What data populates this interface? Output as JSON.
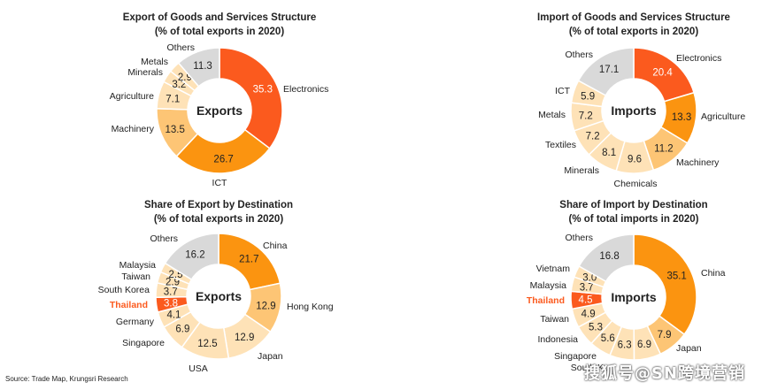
{
  "footer": {
    "source": "Source: Trade Map, Krungsri Research"
  },
  "watermark": {
    "text": "搜狐号@SN跨境营销"
  },
  "chart_data": [
    {
      "type": "pie",
      "title": "Export of Goods and Services Structure",
      "subtitle": "(% of total exports in 2020)",
      "center_label": "Exports",
      "slices": [
        {
          "label": "Electronics",
          "value": 35.3,
          "color": "#fb5a1e"
        },
        {
          "label": "ICT",
          "value": 26.7,
          "color": "#fb9410"
        },
        {
          "label": "Machinery",
          "value": 13.5,
          "color": "#fdc575"
        },
        {
          "label": "Agriculture",
          "value": 7.1,
          "color": "#fee2b7"
        },
        {
          "label": "Minerals",
          "value": 3.2,
          "color": "#fee2b7"
        },
        {
          "label": "Metals",
          "value": 2.9,
          "color": "#fee2b7"
        },
        {
          "label": "Others",
          "value": 11.3,
          "color": "#d9d9d9"
        }
      ]
    },
    {
      "type": "pie",
      "title": "Import of Goods and Services Structure",
      "subtitle": "(% of total exports in 2020)",
      "center_label": "Imports",
      "slices": [
        {
          "label": "Electronics",
          "value": 20.4,
          "color": "#fb5a1e"
        },
        {
          "label": "Agriculture",
          "value": 13.3,
          "color": "#fb9410"
        },
        {
          "label": "Machinery",
          "value": 11.2,
          "color": "#fdc575"
        },
        {
          "label": "Chemicals",
          "value": 9.6,
          "color": "#fee2b7"
        },
        {
          "label": "Minerals",
          "value": 8.1,
          "color": "#fee2b7"
        },
        {
          "label": "Textiles",
          "value": 7.2,
          "color": "#fee2b7"
        },
        {
          "label": "Metals",
          "value": 7.2,
          "color": "#fee2b7"
        },
        {
          "label": "ICT",
          "value": 5.9,
          "color": "#fee2b7"
        },
        {
          "label": "Others",
          "value": 17.1,
          "color": "#d9d9d9"
        }
      ]
    },
    {
      "type": "pie",
      "title": "Share of Export by Destination",
      "subtitle": "(% of total exports in 2020)",
      "center_label": "Exports",
      "slices": [
        {
          "label": "China",
          "value": 21.7,
          "color": "#fb9410"
        },
        {
          "label": "Hong Kong",
          "value": 12.9,
          "color": "#fdc575"
        },
        {
          "label": "Japan",
          "value": 12.9,
          "color": "#fee2b7"
        },
        {
          "label": "USA",
          "value": 12.5,
          "color": "#fee2b7"
        },
        {
          "label": "Singapore",
          "value": 6.9,
          "color": "#fee2b7"
        },
        {
          "label": "Germany",
          "value": 4.1,
          "color": "#fee2b7"
        },
        {
          "label": "Thailand",
          "value": 3.8,
          "color": "#fb5a1e",
          "highlight": true
        },
        {
          "label": "South Korea",
          "value": 3.7,
          "color": "#fee2b7"
        },
        {
          "label": "Taiwan",
          "value": 2.9,
          "color": "#fee2b7"
        },
        {
          "label": "Malaysia",
          "value": 2.5,
          "color": "#fee2b7"
        },
        {
          "label": "Others",
          "value": 16.2,
          "color": "#d9d9d9"
        }
      ]
    },
    {
      "type": "pie",
      "title": "Share of Import by Destination",
      "subtitle": "(% of total imports in 2020)",
      "center_label": "Imports",
      "slices": [
        {
          "label": "China",
          "value": 35.1,
          "color": "#fb9410"
        },
        {
          "label": "Japan",
          "value": 7.9,
          "color": "#fdc575"
        },
        {
          "label": "",
          "value": 6.9,
          "color": "#fee2b7"
        },
        {
          "label": "South Ko",
          "value": 6.3,
          "color": "#fee2b7"
        },
        {
          "label": "Singapore",
          "value": 5.6,
          "color": "#fee2b7"
        },
        {
          "label": "Indonesia",
          "value": 5.3,
          "color": "#fee2b7"
        },
        {
          "label": "Taiwan",
          "value": 4.9,
          "color": "#fee2b7"
        },
        {
          "label": "Thailand",
          "value": 4.5,
          "color": "#fb5a1e",
          "highlight": true
        },
        {
          "label": "Malaysia",
          "value": 3.7,
          "color": "#fee2b7"
        },
        {
          "label": "Vietnam",
          "value": 3.0,
          "color": "#fee2b7"
        },
        {
          "label": "Others",
          "value": 16.8,
          "color": "#d9d9d9"
        }
      ]
    }
  ]
}
